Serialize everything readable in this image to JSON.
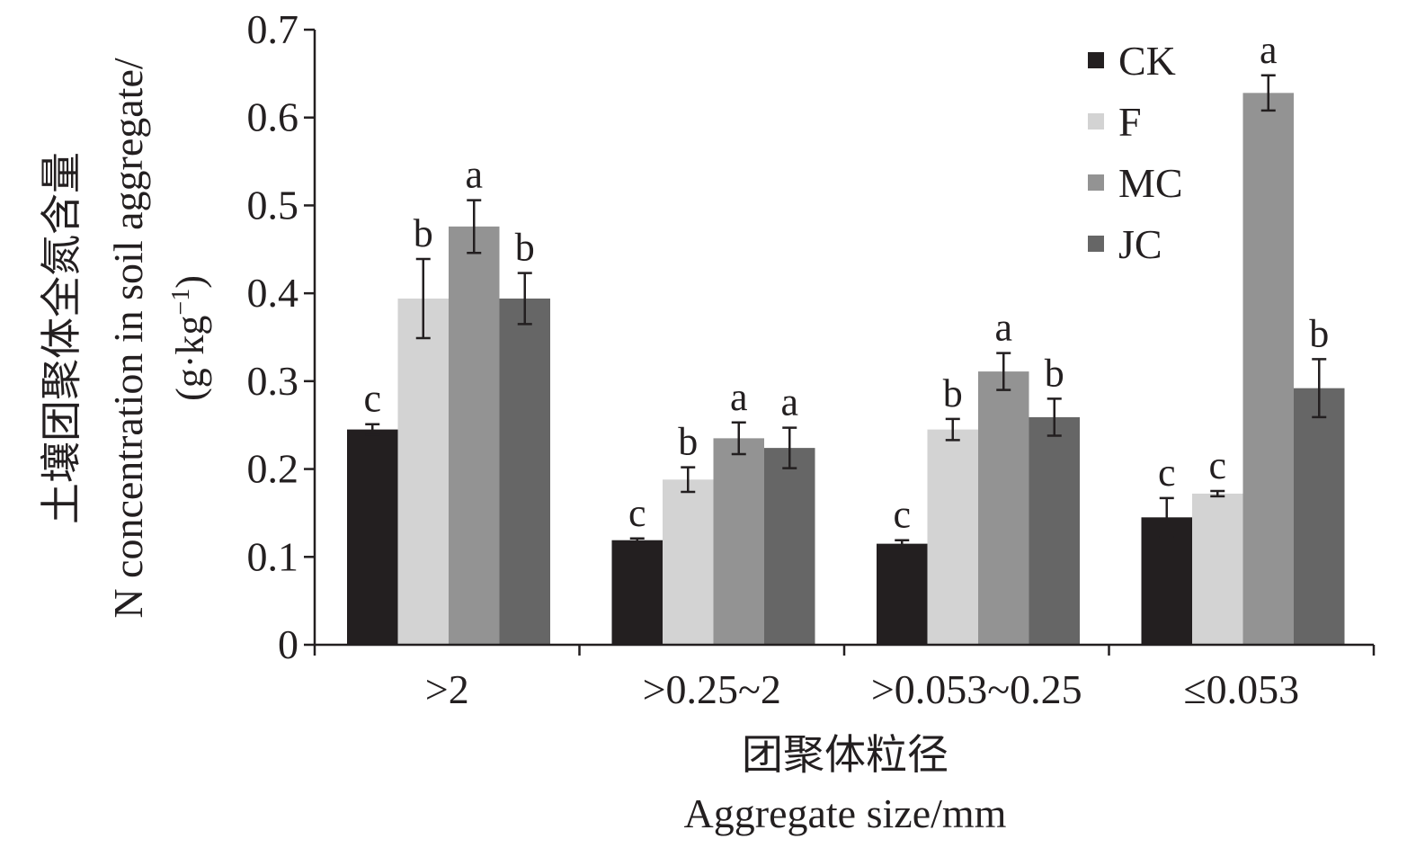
{
  "chart_data": {
    "type": "bar",
    "title": "",
    "xlabel_cn": "团聚体粒径",
    "xlabel": "Aggregate size/mm",
    "ylabel_cn": "土壤团聚体全氮含量",
    "ylabel": "N concentration in soil aggregate/",
    "ylabel_unit_pre": "(g·kg",
    "ylabel_unit_sup": "−1",
    "ylabel_unit_post": ")",
    "ylim": [
      0,
      0.7
    ],
    "yticks": [
      0,
      0.1,
      0.2,
      0.3,
      0.4,
      0.5,
      0.6,
      0.7
    ],
    "ytick_labels": [
      "0",
      "0.1",
      "0.2",
      "0.3",
      "0.4",
      "0.5",
      "0.6",
      "0.7"
    ],
    "categories": [
      ">2",
      ">0.25~2",
      ">0.053~0.25",
      "≤0.053"
    ],
    "legend_position": "top-right",
    "series": [
      {
        "name": "CK",
        "color": "#231f20",
        "values": [
          0.245,
          0.119,
          0.115,
          0.145
        ],
        "errors": [
          0.006,
          0.002,
          0.004,
          0.022
        ],
        "letters": [
          "c",
          "c",
          "c",
          "c"
        ]
      },
      {
        "name": "F",
        "color": "#d3d3d3",
        "values": [
          0.394,
          0.188,
          0.245,
          0.172
        ],
        "errors": [
          0.045,
          0.014,
          0.012,
          0.003
        ],
        "letters": [
          "b",
          "b",
          "b",
          "c"
        ]
      },
      {
        "name": "MC",
        "color": "#939393",
        "values": [
          0.476,
          0.235,
          0.311,
          0.628
        ],
        "errors": [
          0.03,
          0.018,
          0.021,
          0.02
        ],
        "letters": [
          "a",
          "a",
          "a",
          "a"
        ]
      },
      {
        "name": "JC",
        "color": "#666666",
        "values": [
          0.394,
          0.224,
          0.259,
          0.292
        ],
        "errors": [
          0.029,
          0.023,
          0.021,
          0.033
        ],
        "letters": [
          "b",
          "a",
          "b",
          "b"
        ]
      }
    ]
  }
}
